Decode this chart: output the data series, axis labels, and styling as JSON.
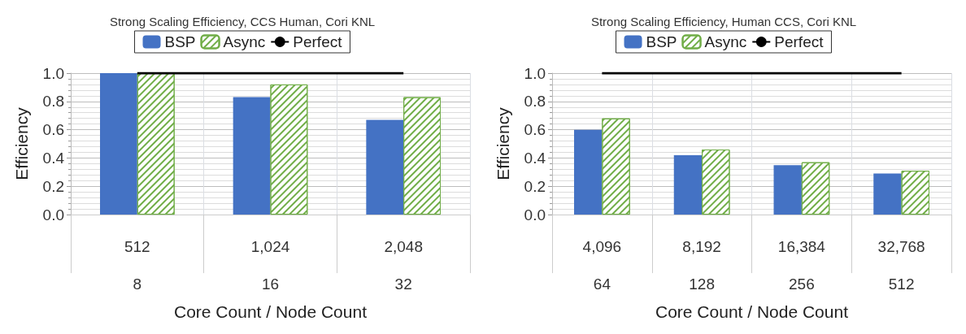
{
  "chart_data": [
    {
      "type": "bar",
      "title": "Strong Scaling Efficiency, CCS Human, Cori KNL",
      "xlabel": "Core Count / Node Count",
      "ylabel": "Efficiency",
      "categories": [
        "512\n8",
        "1,024\n16",
        "2,048\n32"
      ],
      "series": [
        {
          "name": "BSP",
          "color": "#4472c4",
          "values": [
            1.0,
            0.83,
            0.67
          ]
        },
        {
          "name": "Async",
          "color": "#70ad47",
          "values": [
            1.0,
            0.92,
            0.83
          ]
        },
        {
          "name": "Perfect",
          "type": "line",
          "color": "#000000",
          "values": [
            1,
            1,
            1
          ]
        }
      ],
      "ylim": [
        0,
        1
      ],
      "yticks": [
        {
          "value": 0,
          "label": "0.0"
        },
        {
          "value": 0.2,
          "label": "0.2"
        },
        {
          "value": 0.4,
          "label": "0.4"
        },
        {
          "value": 0.6,
          "label": "0.6"
        },
        {
          "value": 0.8,
          "label": "0.8"
        },
        {
          "value": 1,
          "label": "1.0"
        }
      ],
      "grid": true,
      "legend": "top",
      "marker": "none"
    },
    {
      "type": "bar",
      "title": "Strong Scaling Efficiency, Human CCS, Cori KNL",
      "xlabel": "Core Count / Node Count",
      "ylabel": "Efficiency",
      "categories": [
        "4,096\n64",
        "8,192\n128",
        "16,384\n256",
        "32,768\n512"
      ],
      "series": [
        {
          "name": "BSP",
          "color": "#4472c4",
          "values": [
            0.6,
            0.42,
            0.35,
            0.29
          ]
        },
        {
          "name": "Async",
          "color": "#70ad47",
          "values": [
            0.68,
            0.46,
            0.37,
            0.31
          ]
        },
        {
          "name": "Perfect",
          "type": "line",
          "color": "#000000",
          "values": [
            1,
            1,
            1,
            1
          ]
        }
      ],
      "ylim": [
        0,
        1
      ],
      "yticks": [
        {
          "value": 0,
          "label": "0.0"
        },
        {
          "value": 0.2,
          "label": "0.2"
        },
        {
          "value": 0.4,
          "label": "0.4"
        },
        {
          "value": 0.6,
          "label": "0.6"
        },
        {
          "value": 0.8,
          "label": "0.8"
        },
        {
          "value": 1,
          "label": "1.0"
        }
      ],
      "grid": true,
      "legend": "top",
      "marker": "none"
    }
  ]
}
